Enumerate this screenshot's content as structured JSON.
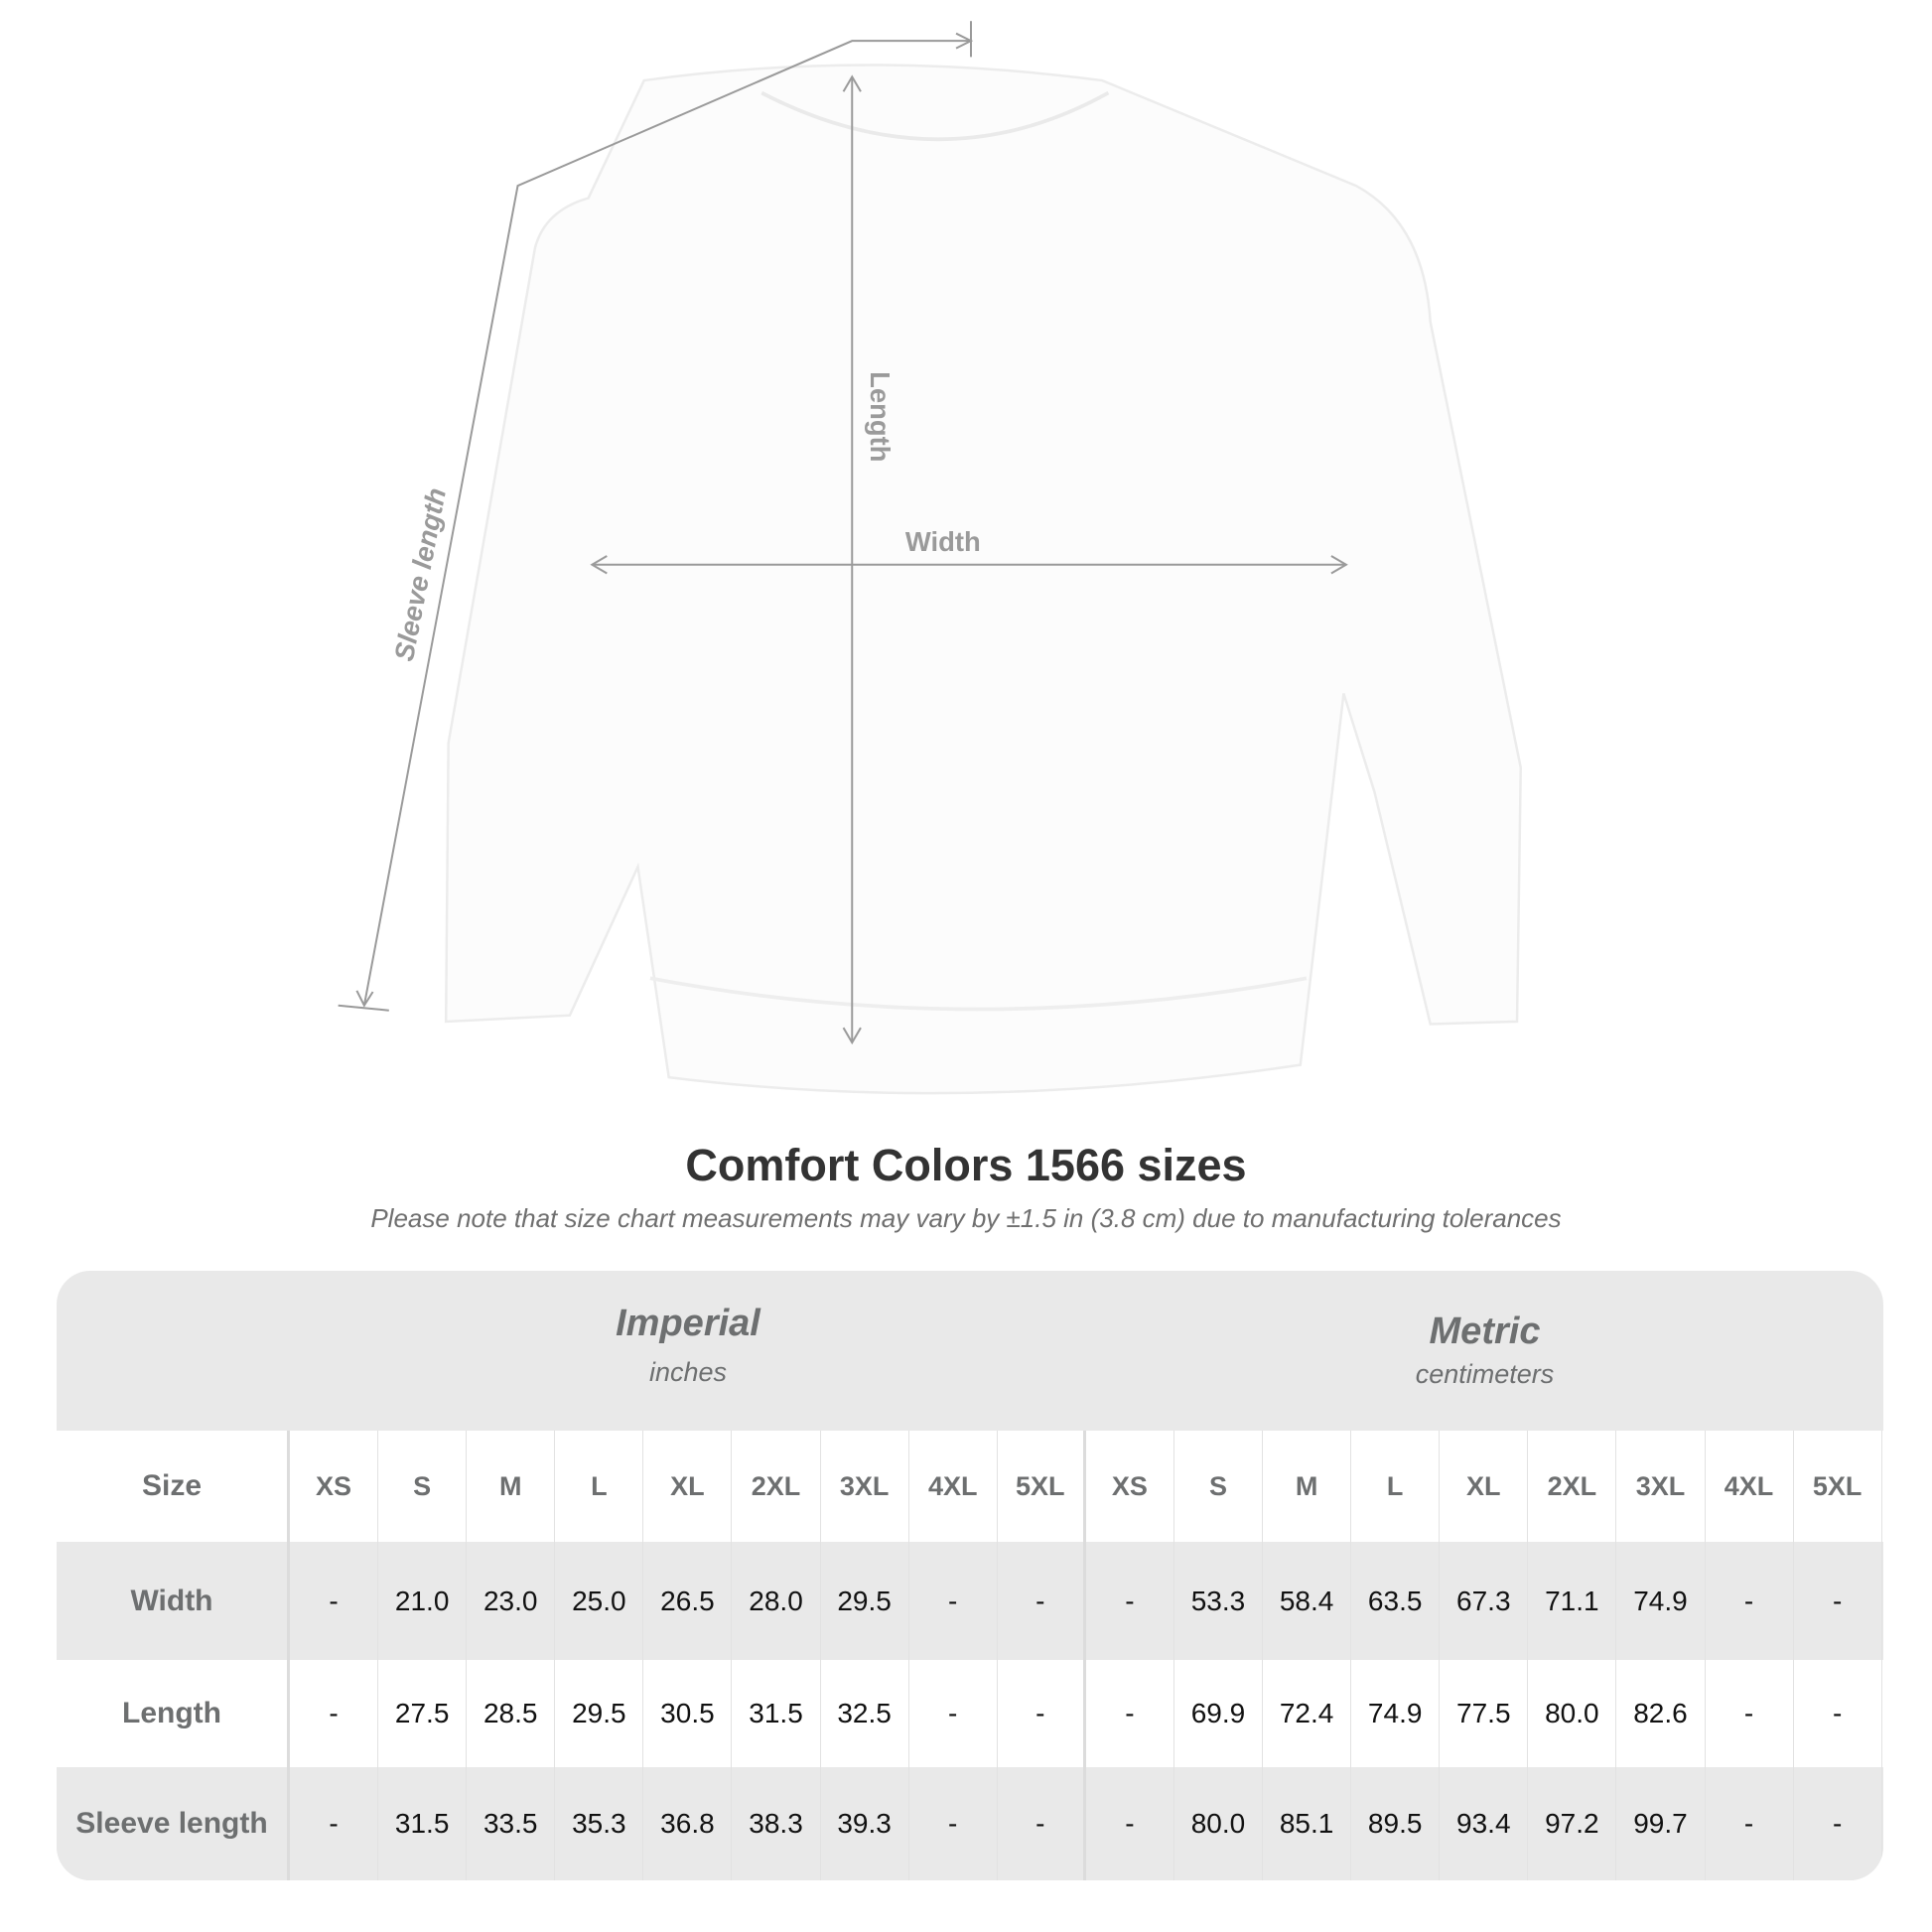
{
  "diagram": {
    "labels": {
      "length": "Length",
      "width": "Width",
      "sleeve": "Sleeve length"
    }
  },
  "title": "Comfort Colors 1566 sizes",
  "note": "Please note that size chart measurements may vary by ±1.5 in (3.8 cm) due to manufacturing tolerances",
  "table": {
    "imperial": {
      "label": "Imperial",
      "unit": "inches"
    },
    "metric": {
      "label": "Metric",
      "unit": "centimeters"
    },
    "size_label": "Size",
    "sizes": [
      "XS",
      "S",
      "M",
      "L",
      "XL",
      "2XL",
      "3XL",
      "4XL",
      "5XL"
    ],
    "rows": [
      {
        "label": "Width",
        "imperial": [
          "-",
          "21.0",
          "23.0",
          "25.0",
          "26.5",
          "28.0",
          "29.5",
          "-",
          "-"
        ],
        "metric": [
          "-",
          "53.3",
          "58.4",
          "63.5",
          "67.3",
          "71.1",
          "74.9",
          "-",
          "-"
        ]
      },
      {
        "label": "Length",
        "imperial": [
          "-",
          "27.5",
          "28.5",
          "29.5",
          "30.5",
          "31.5",
          "32.5",
          "-",
          "-"
        ],
        "metric": [
          "-",
          "69.9",
          "72.4",
          "74.9",
          "77.5",
          "80.0",
          "82.6",
          "-",
          "-"
        ]
      },
      {
        "label": "Sleeve length",
        "imperial": [
          "-",
          "31.5",
          "33.5",
          "35.3",
          "36.8",
          "38.3",
          "39.3",
          "-",
          "-"
        ],
        "metric": [
          "-",
          "80.0",
          "85.1",
          "89.5",
          "93.4",
          "97.2",
          "99.7",
          "-",
          "-"
        ]
      }
    ]
  },
  "colors": {
    "band": "#e9e9e9",
    "label": "#6d6f70",
    "guide": "#9a9a9a"
  }
}
